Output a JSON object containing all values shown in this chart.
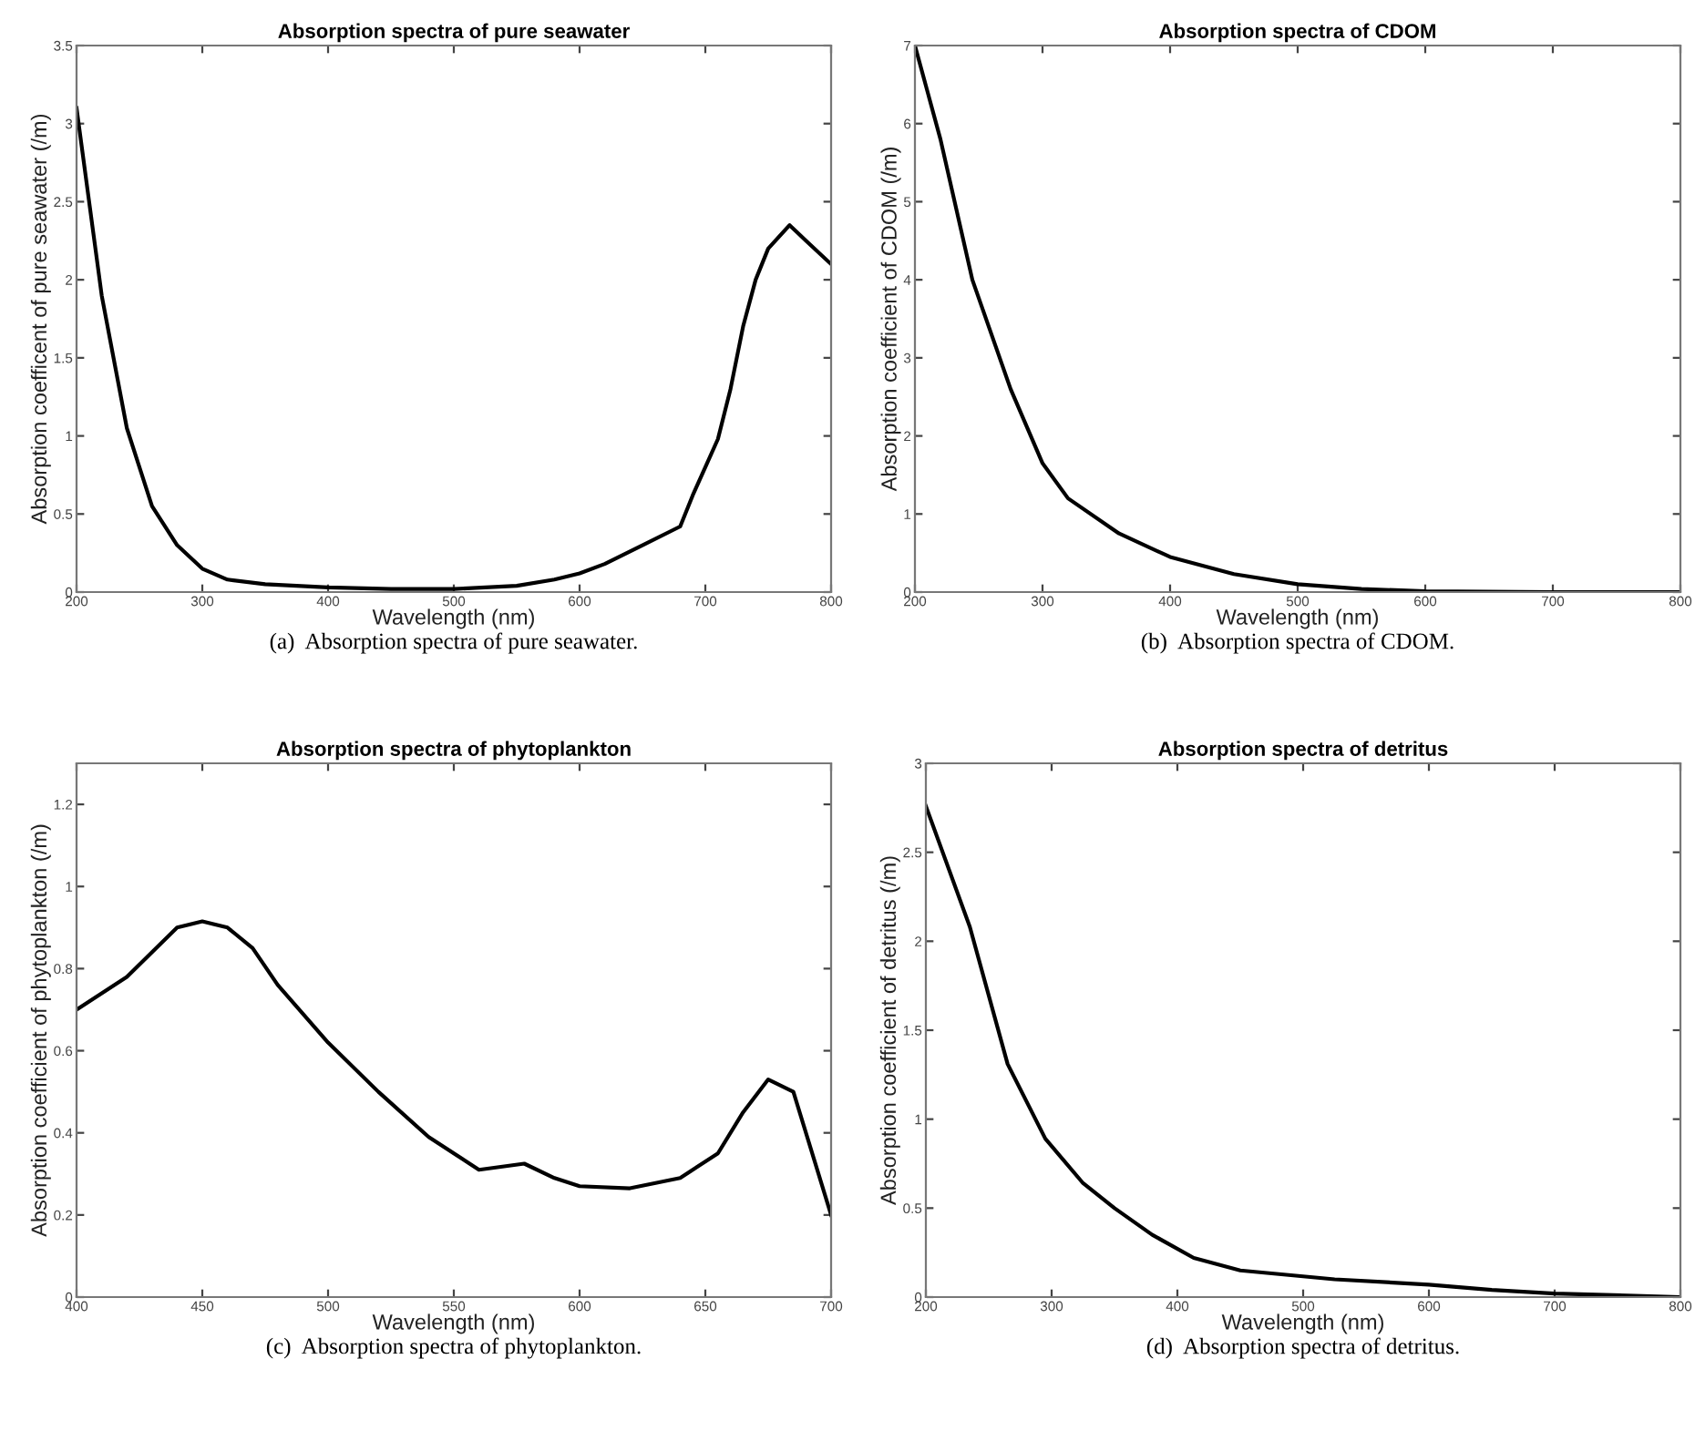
{
  "chart_data": [
    {
      "type": "line",
      "title": "Absorption spectra of pure seawater",
      "xlabel": "Wavelength (nm)",
      "ylabel": "Absorption coefficent of pure seawater (/m)",
      "annotations": [
        "(a)  Absorption spectra of pure seawater."
      ],
      "xlim": [
        200,
        800
      ],
      "ylim": [
        0,
        3.5
      ],
      "xticks": [
        200,
        300,
        400,
        500,
        600,
        700,
        800
      ],
      "yticks": [
        0,
        0.5,
        1,
        1.5,
        2,
        2.5,
        3,
        3.5
      ],
      "grid": false,
      "x": [
        200,
        220,
        240,
        260,
        280,
        300,
        320,
        350,
        400,
        450,
        500,
        550,
        580,
        600,
        620,
        650,
        680,
        690,
        700,
        710,
        720,
        730,
        740,
        750,
        767,
        780,
        800
      ],
      "series": [
        {
          "color": "#000000",
          "values": [
            3.1,
            1.9,
            1.05,
            0.55,
            0.3,
            0.15,
            0.08,
            0.05,
            0.03,
            0.02,
            0.02,
            0.04,
            0.08,
            0.12,
            0.18,
            0.3,
            0.42,
            0.62,
            0.8,
            0.98,
            1.3,
            1.7,
            2.0,
            2.2,
            2.35,
            2.25,
            2.1
          ]
        }
      ]
    },
    {
      "type": "line",
      "title": "Absorption spectra of CDOM",
      "xlabel": "Wavelength (nm)",
      "ylabel": "Absorption coefficient of CDOM (/m)",
      "annotations": [
        "(b)  Absorption spectra of CDOM."
      ],
      "xlim": [
        200,
        800
      ],
      "ylim": [
        0,
        7
      ],
      "xticks": [
        200,
        300,
        400,
        500,
        600,
        700,
        800
      ],
      "yticks": [
        0,
        1,
        2,
        3,
        4,
        5,
        6,
        7
      ],
      "grid": false,
      "x": [
        200,
        220,
        245,
        275,
        300,
        320,
        360,
        400,
        450,
        500,
        550,
        600,
        700,
        800
      ],
      "series": [
        {
          "color": "#000000",
          "values": [
            7.0,
            5.8,
            4.0,
            2.6,
            1.65,
            1.2,
            0.75,
            0.45,
            0.23,
            0.1,
            0.04,
            0.01,
            0,
            0
          ]
        }
      ]
    },
    {
      "type": "line",
      "title": "Absorption spectra of phytoplankton",
      "xlabel": "Wavelength (nm)",
      "ylabel": "Absorption coefficient of phytoplankton (/m)",
      "annotations": [
        "(c)  Absorption spectra of phytoplankton."
      ],
      "xlim": [
        400,
        700
      ],
      "ylim": [
        0,
        1.3
      ],
      "xticks": [
        400,
        450,
        500,
        550,
        600,
        650,
        700
      ],
      "yticks": [
        0,
        0.2,
        0.4,
        0.6,
        0.8,
        1,
        1.2
      ],
      "grid": false,
      "x": [
        400,
        420,
        440,
        450,
        460,
        470,
        480,
        500,
        520,
        540,
        560,
        578,
        590,
        600,
        620,
        640,
        655,
        665,
        675,
        685,
        700
      ],
      "series": [
        {
          "color": "#000000",
          "values": [
            0.7,
            0.78,
            0.9,
            0.915,
            0.9,
            0.85,
            0.76,
            0.62,
            0.5,
            0.39,
            0.31,
            0.325,
            0.29,
            0.27,
            0.265,
            0.29,
            0.35,
            0.45,
            0.53,
            0.5,
            0.2
          ]
        }
      ]
    },
    {
      "type": "line",
      "title": "Absorption spectra of detritus",
      "xlabel": "Wavelength (nm)",
      "ylabel": "Absorption coefficient of detritus (/m)",
      "annotations": [
        "(d)  Absorption spectra of detritus."
      ],
      "xlim": [
        200,
        800
      ],
      "ylim": [
        0,
        3
      ],
      "xticks": [
        200,
        300,
        400,
        500,
        600,
        700,
        800
      ],
      "yticks": [
        0,
        0.5,
        1,
        1.5,
        2,
        2.5,
        3
      ],
      "grid": false,
      "x": [
        200,
        235,
        265,
        295,
        325,
        350,
        380,
        413,
        450,
        525,
        600,
        650,
        700,
        800
      ],
      "series": [
        {
          "color": "#000000",
          "values": [
            2.76,
            2.08,
            1.31,
            0.89,
            0.64,
            0.5,
            0.35,
            0.22,
            0.15,
            0.1,
            0.07,
            0.04,
            0.02,
            0
          ]
        }
      ]
    }
  ]
}
